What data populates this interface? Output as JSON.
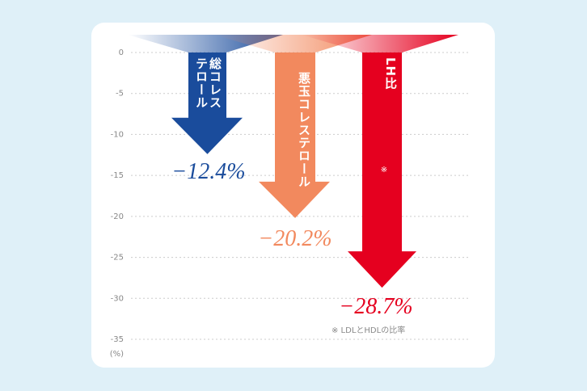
{
  "chart_data": {
    "type": "arrow-bar",
    "y_label": "(%)",
    "ylim": [
      0,
      -35
    ],
    "yticks": [
      0,
      -5,
      -10,
      -15,
      -20,
      -25,
      -30,
      -35
    ],
    "grid": true,
    "series": [
      {
        "name": "総コレステロール",
        "color": "#1a4c9c",
        "values": [
          -12.4
        ],
        "value_labels": [
          "−12.4%"
        ]
      },
      {
        "name": "悪玉コレステロール",
        "color": "#f2895e",
        "values": [
          -20.2
        ],
        "value_labels": [
          "−20.2%"
        ]
      },
      {
        "name": "LH比",
        "note_mark": "※",
        "color": "#e5001f",
        "values": [
          -28.7
        ],
        "value_labels": [
          "−28.7%"
        ]
      }
    ],
    "footnote": "※ LDLとHDLの比率"
  }
}
